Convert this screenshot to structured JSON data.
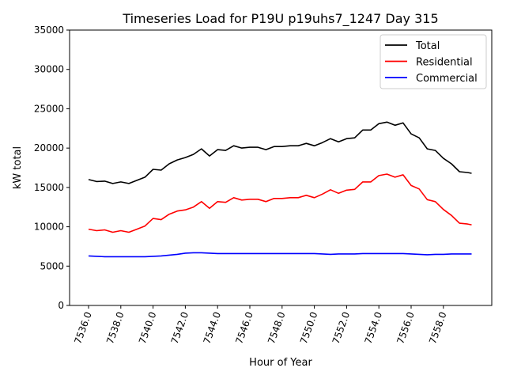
{
  "chart_data": {
    "type": "line",
    "title": "Timeseries Load for P19U p19uhs7_1247  Day 315",
    "xlabel": "Hour of Year",
    "ylabel": "kW total",
    "xlim": [
      7534.8,
      7561
    ],
    "ylim": [
      0,
      35000
    ],
    "x_start": 7536,
    "x_step": 0.5,
    "x_last": 7559.75,
    "xticks": [
      7536,
      7538,
      7540,
      7542,
      7544,
      7546,
      7548,
      7550,
      7552,
      7554,
      7556,
      7558
    ],
    "xtick_labels": [
      "7536.0",
      "7538.0",
      "7540.0",
      "7542.0",
      "7544.0",
      "7546.0",
      "7548.0",
      "7550.0",
      "7552.0",
      "7554.0",
      "7556.0",
      "7558.0"
    ],
    "yticks": [
      0,
      5000,
      10000,
      15000,
      20000,
      25000,
      30000,
      35000
    ],
    "ytick_labels": [
      "0",
      "5000",
      "10000",
      "15000",
      "20000",
      "25000",
      "30000",
      "35000"
    ],
    "grid": false,
    "legend_position": "top-right",
    "series": [
      {
        "name": "Total",
        "color": "#000000",
        "values": [
          16000,
          15750,
          15800,
          15500,
          15700,
          15500,
          15900,
          16300,
          17300,
          17200,
          18000,
          18500,
          18800,
          19200,
          19900,
          19000,
          19800,
          19700,
          20300,
          20000,
          20100,
          20100,
          19800,
          20200,
          20200,
          20300,
          20300,
          20600,
          20300,
          20700,
          21200,
          20800,
          21200,
          21300,
          22300,
          22300,
          23100,
          23300,
          22900,
          23200,
          21800,
          21300,
          19900,
          19700,
          18700,
          18000,
          17000,
          16900,
          16800
        ]
      },
      {
        "name": "Residential",
        "color": "#ff0000",
        "values": [
          9700,
          9500,
          9600,
          9300,
          9500,
          9300,
          9700,
          10100,
          11050,
          10900,
          11600,
          12000,
          12150,
          12500,
          13200,
          12350,
          13200,
          13100,
          13700,
          13400,
          13500,
          13500,
          13200,
          13600,
          13600,
          13700,
          13700,
          14000,
          13700,
          14150,
          14700,
          14250,
          14650,
          14750,
          15700,
          15700,
          16500,
          16700,
          16300,
          16600,
          15250,
          14800,
          13450,
          13200,
          12200,
          11450,
          10450,
          10350,
          10250
        ]
      },
      {
        "name": "Commercial",
        "color": "#0000ff",
        "values": [
          6300,
          6250,
          6200,
          6200,
          6200,
          6200,
          6200,
          6200,
          6250,
          6300,
          6400,
          6500,
          6650,
          6700,
          6700,
          6650,
          6600,
          6600,
          6600,
          6600,
          6600,
          6600,
          6600,
          6600,
          6600,
          6600,
          6600,
          6600,
          6600,
          6550,
          6500,
          6550,
          6550,
          6550,
          6600,
          6600,
          6600,
          6600,
          6600,
          6600,
          6550,
          6500,
          6450,
          6500,
          6500,
          6550,
          6550,
          6550,
          6550
        ]
      }
    ]
  }
}
